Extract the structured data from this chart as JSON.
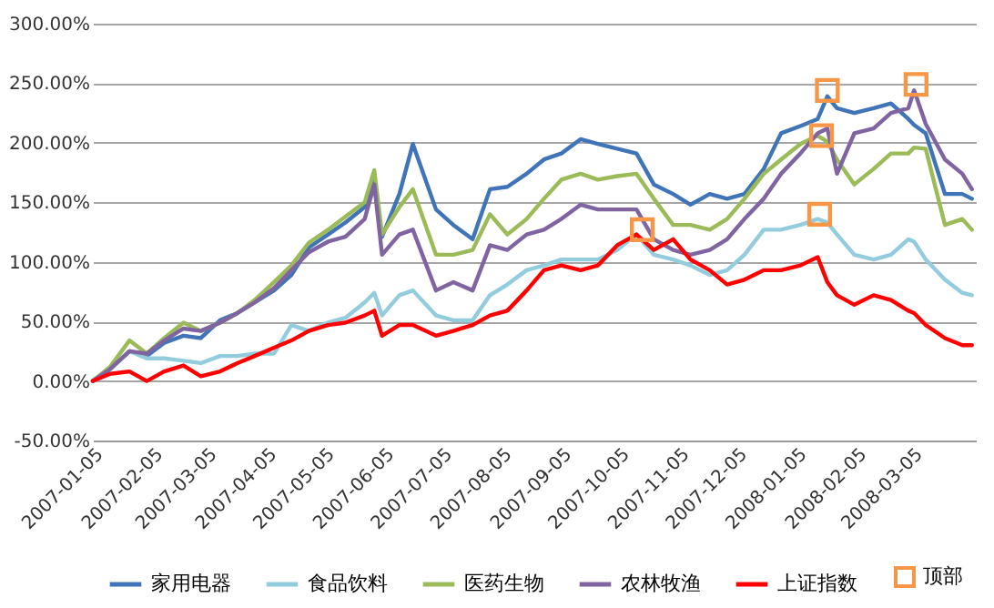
{
  "chart_data": {
    "type": "line",
    "x": [
      "2007-01-05",
      "2007-01-14",
      "2007-01-24",
      "2007-02-02",
      "2007-02-11",
      "2007-02-21",
      "2007-03-02",
      "2007-03-12",
      "2007-03-21",
      "2007-03-30",
      "2007-04-09",
      "2007-04-18",
      "2007-04-27",
      "2007-05-07",
      "2007-05-16",
      "2007-05-26",
      "2007-05-31",
      "2007-06-04",
      "2007-06-13",
      "2007-06-20",
      "2007-07-02",
      "2007-07-11",
      "2007-07-21",
      "2007-07-30",
      "2007-08-08",
      "2007-08-18",
      "2007-08-27",
      "2007-09-05",
      "2007-09-15",
      "2007-09-24",
      "2007-10-04",
      "2007-10-14",
      "2007-10-23",
      "2007-11-02",
      "2007-11-11",
      "2007-11-21",
      "2007-11-30",
      "2007-12-09",
      "2007-12-19",
      "2007-12-28",
      "2008-01-07",
      "2008-01-16",
      "2008-01-21",
      "2008-01-26",
      "2008-02-04",
      "2008-02-14",
      "2008-02-23",
      "2008-03-03",
      "2008-03-06",
      "2008-03-12",
      "2008-03-22",
      "2008-03-31",
      "2008-04-05"
    ],
    "series": [
      {
        "name": "家用电器",
        "color": "#3f74b8",
        "values": [
          0,
          10,
          25,
          21,
          32,
          38,
          36,
          51,
          57,
          66,
          76,
          89,
          112,
          123,
          133,
          146,
          167,
          121,
          157,
          199,
          144,
          131,
          119,
          161,
          163,
          174,
          186,
          191,
          203,
          199,
          195,
          191,
          165,
          157,
          148,
          157,
          153,
          157,
          178,
          208,
          214,
          220,
          239,
          229,
          225,
          229,
          233,
          220,
          215,
          208,
          157,
          157,
          153
        ]
      },
      {
        "name": "食品饮料",
        "color": "#93cddd",
        "values": [
          0,
          10,
          25,
          19,
          19,
          17,
          15,
          21,
          21,
          23,
          23,
          47,
          42,
          49,
          53,
          66,
          74,
          55,
          72,
          76,
          55,
          51,
          51,
          72,
          81,
          93,
          97,
          102,
          102,
          102,
          110,
          123,
          106,
          102,
          97,
          89,
          93,
          106,
          127,
          127,
          131,
          136,
          133,
          123,
          106,
          102,
          106,
          119,
          117,
          102,
          85,
          74,
          72
        ]
      },
      {
        "name": "医药生物",
        "color": "#9bbb59",
        "values": [
          0,
          12,
          34,
          23,
          36,
          49,
          42,
          49,
          57,
          68,
          83,
          97,
          116,
          127,
          138,
          150,
          177,
          123,
          146,
          161,
          106,
          106,
          110,
          140,
          123,
          136,
          153,
          169,
          174,
          169,
          172,
          174,
          153,
          131,
          131,
          127,
          136,
          153,
          174,
          186,
          199,
          206,
          201,
          186,
          165,
          178,
          191,
          191,
          196,
          195,
          131,
          136,
          127
        ]
      },
      {
        "name": "农林牧渔",
        "color": "#8064a2",
        "values": [
          0,
          10,
          25,
          23,
          34,
          44,
          42,
          49,
          57,
          66,
          78,
          93,
          108,
          117,
          121,
          136,
          165,
          106,
          123,
          127,
          76,
          83,
          76,
          114,
          110,
          123,
          127,
          136,
          148,
          144,
          144,
          144,
          119,
          110,
          106,
          110,
          119,
          136,
          153,
          174,
          191,
          208,
          212,
          174,
          208,
          212,
          225,
          229,
          244,
          216,
          186,
          174,
          161
        ]
      },
      {
        "name": "上证指数",
        "color": "#ff0000",
        "values": [
          0,
          6,
          8,
          0,
          8,
          13,
          4,
          8,
          15,
          21,
          28,
          34,
          42,
          47,
          49,
          55,
          59,
          38,
          47,
          47,
          38,
          42,
          47,
          55,
          59,
          76,
          93,
          97,
          93,
          97,
          114,
          123,
          110,
          119,
          102,
          93,
          81,
          85,
          93,
          93,
          97,
          104,
          83,
          72,
          64,
          72,
          68,
          59,
          57,
          47,
          36,
          30,
          30
        ]
      },
      {
        "name": "顶部",
        "type": "scatter",
        "marker": "square",
        "color": "#f79646",
        "x": [
          "2007-10-17",
          "2008-01-21",
          "2008-01-18",
          "2008-01-17",
          "2008-03-07"
        ],
        "values": [
          127,
          244,
          206,
          140,
          249
        ]
      }
    ],
    "xlim": [
      "2007-01-05",
      "2008-04-07"
    ],
    "xticks": [
      "2007-01-05",
      "2007-02-05",
      "2007-03-05",
      "2007-04-05",
      "2007-05-05",
      "2007-06-05",
      "2007-07-05",
      "2007-08-05",
      "2007-09-05",
      "2007-10-05",
      "2007-11-05",
      "2007-12-05",
      "2008-01-05",
      "2008-02-05",
      "2008-03-05"
    ],
    "ylim": [
      -50,
      300
    ],
    "yticks": [
      {
        "value": -50,
        "label": "-50.00%"
      },
      {
        "value": 0,
        "label": "0.00%"
      },
      {
        "value": 50,
        "label": "50.00%"
      },
      {
        "value": 100,
        "label": "100.00%"
      },
      {
        "value": 150,
        "label": "150.00%"
      },
      {
        "value": 200,
        "label": "200.00%"
      },
      {
        "value": 250,
        "label": "250.00%"
      },
      {
        "value": 300,
        "label": "300.00%"
      }
    ],
    "grid": "y",
    "legend": "bottom",
    "line_style": "solid"
  }
}
